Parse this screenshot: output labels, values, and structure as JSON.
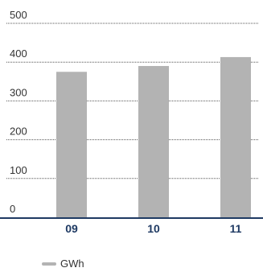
{
  "chart_data": {
    "type": "bar",
    "categories": [
      "09",
      "10",
      "11"
    ],
    "series": [
      {
        "name": "GWh",
        "values": [
          375,
          390,
          413
        ]
      }
    ],
    "yticks": [
      "0",
      "100",
      "200",
      "300",
      "400",
      "500"
    ],
    "ylim": [
      0,
      500
    ],
    "grid": true,
    "legend_position": "bottom-left",
    "colors": {
      "bar": "#b3b3b3",
      "axis": "#1f3a63",
      "grid": "#555555",
      "category_label": "#1f3a63",
      "tick_label": "#333333"
    }
  }
}
